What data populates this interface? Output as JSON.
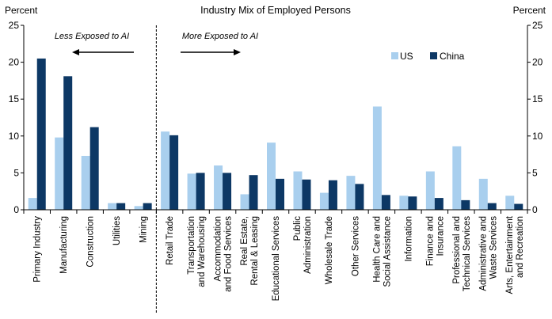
{
  "chart_data": {
    "type": "bar",
    "title": "Industry Mix of Employed Persons",
    "ylabel_left": "Percent",
    "ylabel_right": "Percent",
    "ylim": [
      0,
      25
    ],
    "yticks": [
      0,
      5,
      10,
      15,
      20,
      25
    ],
    "categories": [
      "Primary Industry",
      "Manufacturing",
      "Construction",
      "Utilities",
      "Mining",
      "Retail Trade",
      "Transportation and Warehousing",
      "Accommodation and Food Services",
      "Real Estate, Rental & Leasing",
      "Educational Services",
      "Public Administration",
      "Wholesale Trade",
      "Other Services",
      "Health Care and Social Assistance",
      "Information",
      "Finance and Insurance",
      "Professional and Technical Services",
      "Administrative and Waste Services",
      "Arts, Entertainment and Recreation"
    ],
    "category_label_lines": [
      [
        "Primary Industry"
      ],
      [
        "Manufacturing"
      ],
      [
        "Construction"
      ],
      [
        "Utilities"
      ],
      [
        "Mining"
      ],
      [
        "Retail Trade"
      ],
      [
        "Transportation",
        "and Warehousing"
      ],
      [
        "Accommodation",
        "and Food Services"
      ],
      [
        "Real Estate,",
        "Rental & Leasing"
      ],
      [
        "Educational Services"
      ],
      [
        "Public",
        "Administration"
      ],
      [
        "Wholesale Trade"
      ],
      [
        "Other Services"
      ],
      [
        "Health Care and",
        "Social Assistance"
      ],
      [
        "Information"
      ],
      [
        "Finance and",
        "Insurance"
      ],
      [
        "Professional and",
        "Technical Services"
      ],
      [
        "Administrative and",
        "Waste Services"
      ],
      [
        "Arts, Entertainment",
        "and Recreation"
      ]
    ],
    "series": [
      {
        "name": "US",
        "color": "#a9cfee",
        "values": [
          1.6,
          9.8,
          7.3,
          0.9,
          0.5,
          10.6,
          4.9,
          6.0,
          2.1,
          9.1,
          5.2,
          2.3,
          4.6,
          14.0,
          1.9,
          5.2,
          8.6,
          4.2,
          1.9
        ]
      },
      {
        "name": "China",
        "color": "#0d3865",
        "values": [
          20.5,
          18.1,
          11.2,
          0.9,
          0.9,
          10.1,
          5.0,
          5.0,
          4.7,
          4.2,
          4.1,
          4.0,
          3.5,
          2.0,
          1.8,
          1.6,
          1.3,
          0.9,
          0.8
        ]
      }
    ],
    "divider_after_index": 4,
    "annotations": [
      {
        "text": "Less Exposed to AI",
        "arrow": "left"
      },
      {
        "text": "More Exposed to AI",
        "arrow": "right"
      }
    ],
    "legend": {
      "position": "top-right",
      "entries": [
        "US",
        "China"
      ]
    },
    "grid": false
  }
}
